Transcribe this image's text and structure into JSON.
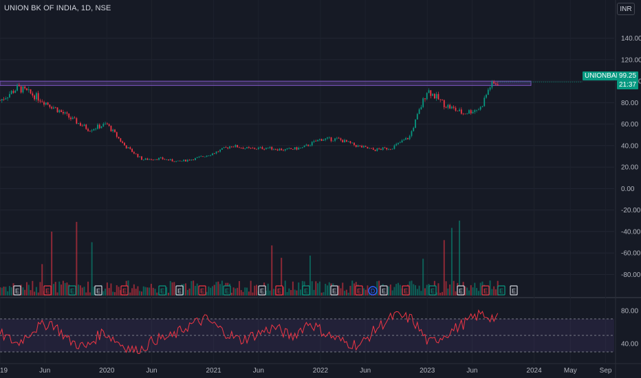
{
  "header": {
    "symbol_title": "UNION BK OF INDIA, 1D, NSE",
    "currency_button": "INR"
  },
  "price_tag": {
    "symbol": "UNIONBANK",
    "price": "99.25",
    "countdown": "21:37",
    "color": "#089981"
  },
  "colors": {
    "background": "#161a25",
    "up": "#089981",
    "down": "#f23645",
    "resistance_band": "#7e57c2",
    "rsi_line": "#f23645",
    "rsi_band": "#7e57c2"
  },
  "chart_data": [
    {
      "type": "candlestick",
      "x_ticks": [
        "2019",
        "Jun",
        "2020",
        "Jun",
        "2021",
        "Jun",
        "2022",
        "Jun",
        "2023",
        "Jun",
        "2024",
        "May",
        "Sep"
      ],
      "y_ticks": [
        "140.00",
        "120.00",
        "100.00",
        "80.00",
        "60.00",
        "40.00",
        "20.00",
        "0.00",
        "-20.00",
        "-40.00",
        "-60.00",
        "-80.00"
      ],
      "ylim": [
        -90,
        150
      ],
      "x": [
        "2019-01",
        "2019-03",
        "2019-05",
        "2019-07",
        "2019-09",
        "2019-11",
        "2020-01",
        "2020-03",
        "2020-05",
        "2020-07",
        "2020-09",
        "2020-11",
        "2021-01",
        "2021-03",
        "2021-05",
        "2021-07",
        "2021-09",
        "2021-11",
        "2022-01",
        "2022-03",
        "2022-05",
        "2022-07",
        "2022-09",
        "2022-11",
        "2023-01",
        "2023-03",
        "2023-05",
        "2023-07",
        "2023-08",
        "2023-09"
      ],
      "close": [
        82,
        94,
        86,
        76,
        65,
        55,
        60,
        40,
        27,
        28,
        25,
        28,
        33,
        40,
        37,
        38,
        36,
        38,
        46,
        46,
        40,
        36,
        38,
        48,
        92,
        78,
        70,
        75,
        95,
        99.25
      ],
      "resistance_band": [
        96,
        100
      ],
      "last_price": 99.25,
      "series": [
        {
          "name": "Volume",
          "type": "bar"
        },
        {
          "name": "Events",
          "type": "markers",
          "labels": [
            "E",
            "E",
            "E",
            "E",
            "E",
            "E",
            "E",
            "E",
            "E",
            "E",
            "E",
            "E",
            "E",
            "E",
            "D",
            "E",
            "E",
            "E",
            "E",
            "E",
            "E",
            "E",
            "E"
          ]
        }
      ]
    },
    {
      "type": "line",
      "name": "RSI",
      "y_ticks": [
        "80.00",
        "40.00"
      ],
      "ylim": [
        25,
        90
      ],
      "levels": [
        70,
        50,
        30
      ],
      "values": [
        52,
        40,
        58,
        66,
        44,
        35,
        55,
        40,
        30,
        45,
        48,
        62,
        70,
        55,
        44,
        52,
        60,
        48,
        66,
        52,
        42,
        38,
        60,
        74,
        70,
        40,
        52,
        64,
        76,
        70
      ]
    }
  ]
}
